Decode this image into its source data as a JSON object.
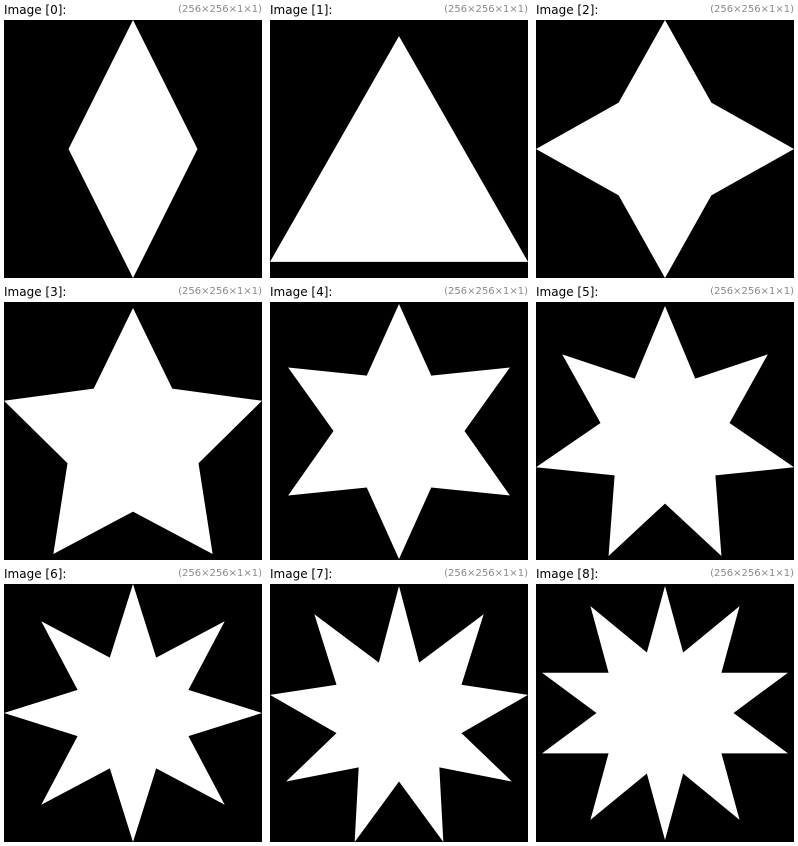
{
  "colors": {
    "background": "#ffffff",
    "image_background": "#000000",
    "shape_fill": "#ffffff",
    "label_text": "#000000",
    "dims_text": "#8a8a8a"
  },
  "images": [
    {
      "label": "Image [0]:",
      "dims": "(256×256×1×1)",
      "shape": "diamond"
    },
    {
      "label": "Image [1]:",
      "dims": "(256×256×1×1)",
      "shape": "triangle"
    },
    {
      "label": "Image [2]:",
      "dims": "(256×256×1×1)",
      "shape": "4-point-star"
    },
    {
      "label": "Image [3]:",
      "dims": "(256×256×1×1)",
      "shape": "5-point-star"
    },
    {
      "label": "Image [4]:",
      "dims": "(256×256×1×1)",
      "shape": "6-point-star"
    },
    {
      "label": "Image [5]:",
      "dims": "(256×256×1×1)",
      "shape": "7-point-star"
    },
    {
      "label": "Image [6]:",
      "dims": "(256×256×1×1)",
      "shape": "8-point-star"
    },
    {
      "label": "Image [7]:",
      "dims": "(256×256×1×1)",
      "shape": "9-point-star"
    },
    {
      "label": "Image [8]:",
      "dims": "(256×256×1×1)",
      "shape": "10-point-star"
    }
  ]
}
